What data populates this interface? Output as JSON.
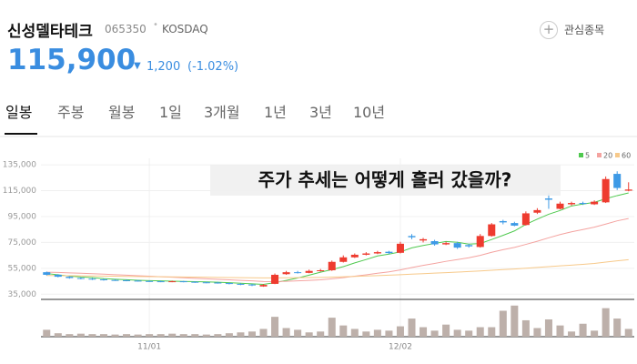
{
  "header": {
    "name": "신성델타테크",
    "code": "065350",
    "market": "KOSDAQ",
    "watch": "관심종목",
    "price": "115,900",
    "change": "1,200",
    "change_pct": "(-1.02%)"
  },
  "tabs": [
    "일봉",
    "주봉",
    "월봉",
    "1일",
    "3개월",
    "1년",
    "3년",
    "10년"
  ],
  "active_tab": 0,
  "chart_data": {
    "type": "candlestick",
    "annotation": "주가 추세는 어떻게 흘러 갔을까?",
    "categories": [
      null,
      null,
      null,
      null,
      null,
      null,
      null,
      null,
      null,
      "11/01",
      null,
      null,
      null,
      null,
      null,
      null,
      null,
      null,
      null,
      null,
      null,
      null,
      null,
      null,
      null,
      null,
      null,
      null,
      null,
      null,
      null,
      "12/02",
      null,
      null,
      null,
      null,
      null,
      null,
      null,
      null,
      null,
      null,
      null,
      null,
      null,
      null,
      null,
      null,
      null,
      null,
      null,
      null
    ],
    "open": [
      52000,
      50000,
      48500,
      47500,
      47000,
      46500,
      46000,
      45800,
      45500,
      45200,
      45000,
      44700,
      45000,
      44600,
      44200,
      44000,
      43600,
      43000,
      42500,
      41000,
      43000,
      50500,
      52000,
      51500,
      53000,
      53500,
      60000,
      63500,
      65500,
      66500,
      67800,
      67000,
      80000,
      76500,
      76000,
      73500,
      74500,
      73000,
      71500,
      80000,
      91500,
      90000,
      88500,
      98000,
      109000,
      101000,
      104500,
      105500,
      104500,
      106000,
      128000,
      115000
    ],
    "high": [
      52500,
      50500,
      49000,
      48000,
      47500,
      47000,
      46500,
      46300,
      46000,
      45700,
      45500,
      45500,
      45300,
      45000,
      44700,
      44500,
      44000,
      43500,
      43000,
      42800,
      51000,
      53000,
      53000,
      54000,
      54500,
      61000,
      65000,
      66500,
      67500,
      68500,
      68500,
      75500,
      81500,
      78500,
      77000,
      75500,
      75500,
      74000,
      81500,
      90000,
      92500,
      91000,
      99000,
      101500,
      113000,
      106500,
      106500,
      106500,
      107500,
      126000,
      130000,
      121500
    ],
    "low": [
      49500,
      48000,
      47000,
      46500,
      46000,
      45500,
      45300,
      45000,
      44800,
      44500,
      44300,
      44300,
      44200,
      43800,
      43500,
      43200,
      42600,
      42000,
      41300,
      40800,
      42800,
      50000,
      51000,
      51200,
      52500,
      53000,
      59500,
      63000,
      65000,
      66000,
      66000,
      66500,
      77500,
      75000,
      72500,
      73000,
      70000,
      71000,
      71000,
      79500,
      89000,
      87500,
      88000,
      97000,
      101000,
      100500,
      103500,
      104000,
      104000,
      105500,
      115500,
      114500
    ],
    "close": [
      50000,
      48500,
      47500,
      47000,
      46500,
      46000,
      45800,
      45500,
      45200,
      45000,
      44800,
      45000,
      44600,
      44200,
      44000,
      43600,
      43000,
      42500,
      41800,
      42200,
      50000,
      52000,
      51500,
      53000,
      53500,
      60000,
      63500,
      65500,
      66500,
      67500,
      66800,
      74000,
      79000,
      77500,
      73500,
      74500,
      71000,
      72000,
      80000,
      89000,
      90500,
      88000,
      97500,
      100000,
      108000,
      105000,
      105500,
      105000,
      106500,
      124000,
      117100,
      115900
    ],
    "up_color": "#ee3b2f",
    "down_color": "#3d9ae6",
    "volume": {
      "color": "#bdb0aa",
      "ylim": [
        0,
        400000
      ],
      "values": [
        80000,
        40000,
        30000,
        35000,
        30000,
        30000,
        25000,
        30000,
        25000,
        30000,
        30000,
        35000,
        30000,
        30000,
        25000,
        30000,
        40000,
        50000,
        60000,
        90000,
        230000,
        100000,
        80000,
        50000,
        60000,
        220000,
        130000,
        90000,
        60000,
        80000,
        70000,
        120000,
        210000,
        110000,
        70000,
        140000,
        80000,
        70000,
        110000,
        110000,
        300000,
        360000,
        190000,
        100000,
        200000,
        130000,
        60000,
        150000,
        70000,
        330000,
        210000,
        90000
      ]
    },
    "series": [
      {
        "name": "5",
        "color": "#4fc94f",
        "values": [
          51000,
          50000,
          49000,
          48300,
          47900,
          47100,
          46600,
          46200,
          45800,
          45500,
          45300,
          45100,
          44900,
          44700,
          44500,
          44300,
          43900,
          43500,
          43000,
          42600,
          43900,
          45700,
          47500,
          49700,
          52000,
          54000,
          56300,
          59200,
          61800,
          64600,
          66000,
          67700,
          70800,
          72700,
          74200,
          75700,
          75100,
          73700,
          74200,
          77300,
          80500,
          83900,
          89000,
          93000,
          96800,
          99700,
          103200,
          104700,
          106000,
          108800,
          111200,
          113300
        ]
      },
      {
        "name": "20",
        "color": "#f4a3a0",
        "values": [
          52000,
          51800,
          51500,
          51200,
          50900,
          50500,
          50100,
          49700,
          49300,
          48900,
          48500,
          48100,
          47700,
          47300,
          46900,
          46500,
          46100,
          45700,
          45300,
          44800,
          44700,
          45000,
          45300,
          45700,
          46100,
          46900,
          47800,
          48900,
          50000,
          51200,
          52300,
          53800,
          55600,
          57300,
          58800,
          60400,
          61800,
          63200,
          65000,
          67400,
          69400,
          71200,
          73500,
          75900,
          78600,
          81100,
          83200,
          85000,
          86800,
          89200,
          91700,
          93500
        ]
      },
      {
        "name": "60",
        "color": "#f7c98a",
        "values": [
          49500,
          49400,
          49300,
          49200,
          49100,
          49000,
          48900,
          48800,
          48700,
          48600,
          48500,
          48400,
          48300,
          48200,
          48100,
          48000,
          47900,
          47800,
          47700,
          47600,
          47600,
          47700,
          47800,
          47900,
          48000,
          48200,
          48500,
          48800,
          49100,
          49400,
          49700,
          50100,
          50500,
          50900,
          51300,
          51700,
          52100,
          52500,
          53000,
          53500,
          54000,
          54500,
          55100,
          55700,
          56300,
          56900,
          57500,
          58100,
          58800,
          59800,
          60800,
          61700
        ]
      }
    ],
    "ylim": [
      31000,
      140000
    ],
    "yticks": [
      {
        "value": 35000,
        "label": "35,000"
      },
      {
        "value": 55000,
        "label": "55,000"
      },
      {
        "value": 75000,
        "label": "75,000"
      },
      {
        "value": 95000,
        "label": "95,000"
      },
      {
        "value": 115000,
        "label": "115,000"
      },
      {
        "value": 135000,
        "label": "135,000"
      }
    ],
    "grid": true
  }
}
